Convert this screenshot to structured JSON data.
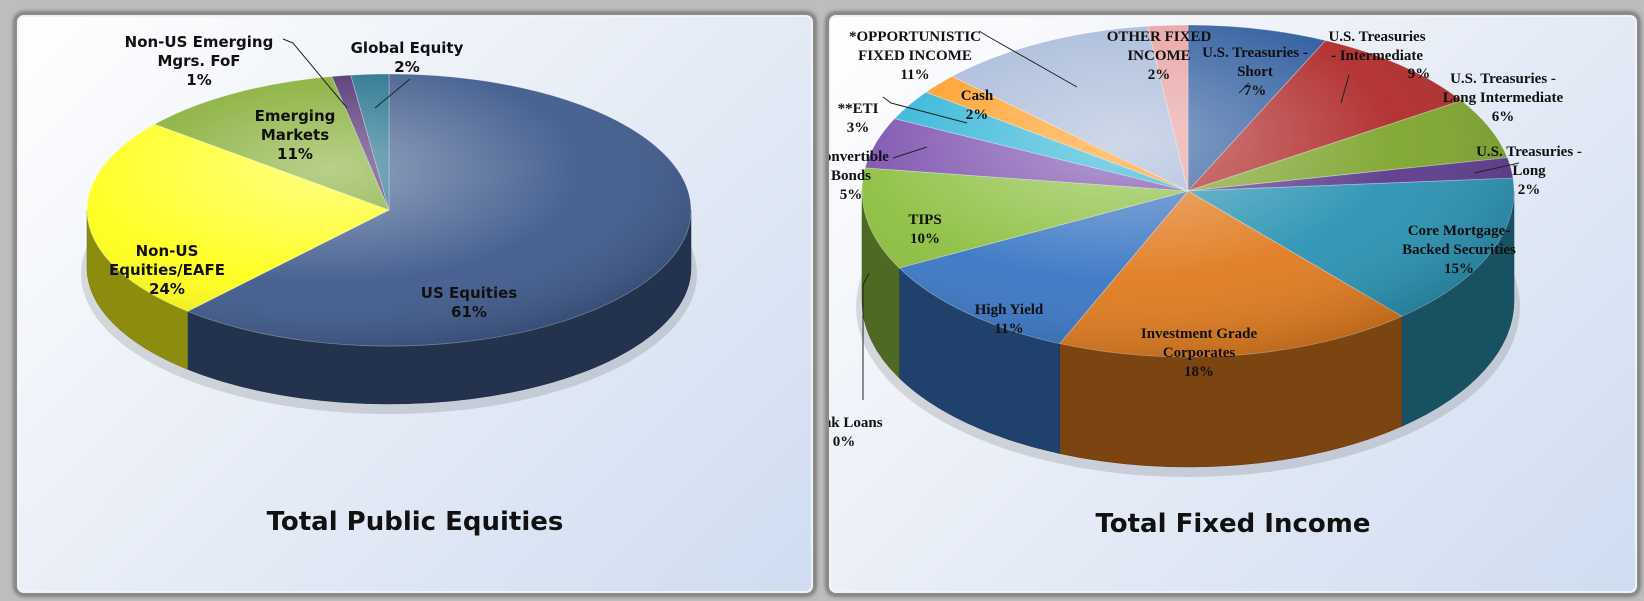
{
  "chart_data": [
    {
      "type": "pie",
      "title": "Total Public Equities",
      "slices": [
        {
          "label": "US Equities",
          "value": 61,
          "value_label": "61%",
          "color": "#3f5a8c"
        },
        {
          "label": "Non-US Equities/EAFE",
          "value": 24,
          "value_label": "24%",
          "color": "#ffff1a"
        },
        {
          "label": "Emerging Markets",
          "value": 11,
          "value_label": "11%",
          "color": "#7faa2c"
        },
        {
          "label": "Non-US Emerging Mgrs. FoF",
          "value": 1,
          "value_label": "1%",
          "color": "#4b2a6e"
        },
        {
          "label": "Global Equity",
          "value": 2,
          "value_label": "2%",
          "color": "#1f6e8c"
        }
      ]
    },
    {
      "type": "pie",
      "title": "Total Fixed Income",
      "slices": [
        {
          "label": "U.S. Treasuries - Short",
          "value": 7,
          "value_label": "7%",
          "color": "#2e5c9e"
        },
        {
          "label": "U.S. Treasuries - Intermediate",
          "value": 9,
          "value_label": "9%",
          "color": "#b02a2a"
        },
        {
          "label": "U.S. Treasuries - Long Intermediate",
          "value": 6,
          "value_label": "6%",
          "color": "#7da52e"
        },
        {
          "label": "U.S. Treasuries - Long",
          "value": 2,
          "value_label": "2%",
          "color": "#5b3a8c"
        },
        {
          "label": "Core Mortgage-Backed Securities",
          "value": 15,
          "value_label": "15%",
          "color": "#2a93b3"
        },
        {
          "label": "Investment Grade Corporates",
          "value": 18,
          "value_label": "18%",
          "color": "#e07b1e"
        },
        {
          "label": "High Yield",
          "value": 11,
          "value_label": "11%",
          "color": "#3a76c4"
        },
        {
          "label": "Bank Loans",
          "value": 0,
          "value_label": "0%",
          "color": "#b12a2a"
        },
        {
          "label": "TIPS",
          "value": 10,
          "value_label": "10%",
          "color": "#8cbf3f"
        },
        {
          "label": "Convertible Bonds",
          "value": 5,
          "value_label": "5%",
          "color": "#7b4fae"
        },
        {
          "label": "**ETI",
          "value": 3,
          "value_label": "3%",
          "color": "#2ab3d6"
        },
        {
          "label": "Cash",
          "value": 2,
          "value_label": "2%",
          "color": "#ff9a1e"
        },
        {
          "label": "*OPPORTUNISTIC FIXED INCOME",
          "value": 11,
          "value_label": "11%",
          "color": "#a6b8d8"
        },
        {
          "label": "OTHER FIXED INCOME",
          "value": 2,
          "value_label": "2%",
          "color": "#e8a0a0"
        }
      ]
    }
  ]
}
